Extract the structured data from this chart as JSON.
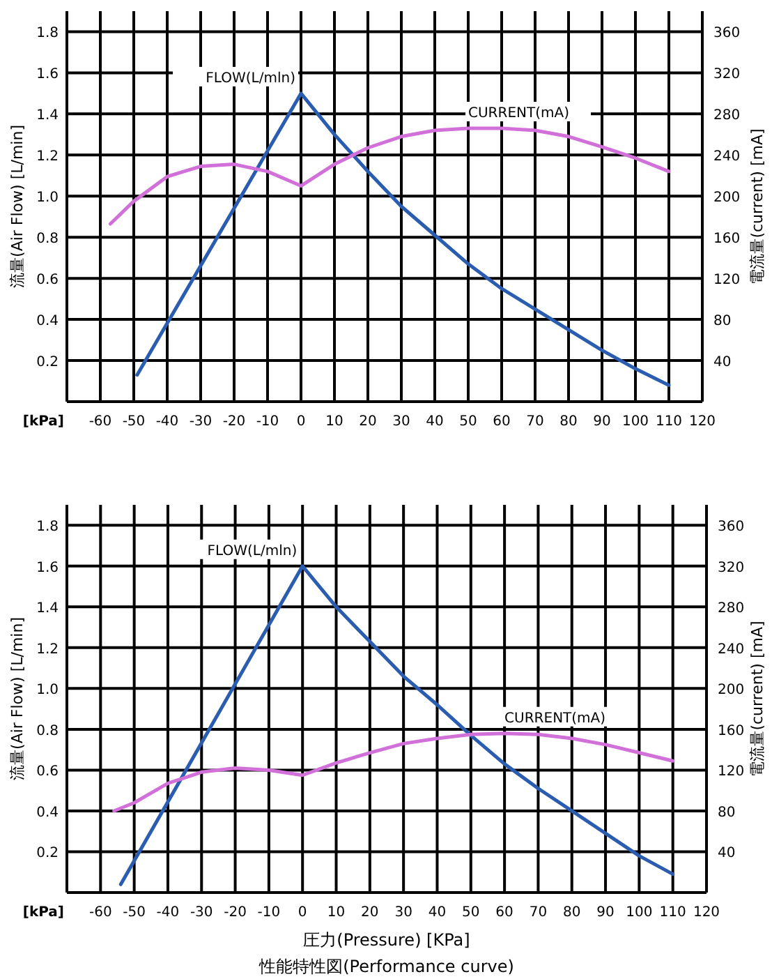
{
  "chart_data": [
    {
      "type": "line",
      "ylabel": "流量(Air Flow) [L/min]",
      "y2label": "電流量(current) [mA]",
      "annotations": [
        "[kPa]"
      ],
      "xlim": [
        -70,
        120
      ],
      "xticks": [
        -60,
        -50,
        -40,
        -30,
        -20,
        -10,
        0,
        10,
        20,
        30,
        40,
        50,
        60,
        70,
        80,
        90,
        100,
        110,
        120
      ],
      "ylim": [
        0,
        1.9
      ],
      "yticks": [
        0.2,
        0.4,
        0.6,
        0.8,
        {
          "value": 1,
          "label": "1.0"
        },
        1.2,
        1.4,
        1.6,
        1.8
      ],
      "y2lim": [
        0,
        380
      ],
      "y2ticks": [
        40,
        80,
        120,
        160,
        200,
        240,
        280,
        320,
        360
      ],
      "grid": true,
      "series": [
        {
          "name": "FLOW(L/mln)",
          "color": "#2a5db0",
          "x": [
            -49,
            0,
            10,
            20,
            30,
            40,
            50,
            60,
            70,
            80,
            90,
            100,
            110
          ],
          "values": [
            0.13,
            1.5,
            1.3,
            1.12,
            0.95,
            0.81,
            0.67,
            0.55,
            0.45,
            0.35,
            0.25,
            0.16,
            0.08
          ]
        },
        {
          "name": "CURRENT(mA)",
          "color": "#d070d8",
          "axis": "y2",
          "x": [
            -57,
            -50,
            -40,
            -30,
            -20,
            -10,
            0,
            10,
            20,
            30,
            40,
            50,
            60,
            70,
            80,
            90,
            100,
            110
          ],
          "values": [
            173,
            195,
            219,
            229,
            231,
            224,
            210,
            231,
            247,
            258,
            264,
            266,
            266,
            264,
            258,
            248,
            237,
            224
          ]
        }
      ]
    },
    {
      "type": "line",
      "xlabel": "圧力(Pressure) [KPa]",
      "ylabel": "流量(Air Flow) [L/min]",
      "y2label": "電流量(current) [mA]",
      "annotations": [
        "[kPa]",
        "性能特性図(Performance curve)"
      ],
      "xlim": [
        -70,
        120
      ],
      "xticks": [
        -60,
        -50,
        -40,
        -30,
        -20,
        -10,
        0,
        10,
        20,
        30,
        40,
        50,
        60,
        70,
        80,
        90,
        100,
        110,
        120
      ],
      "ylim": [
        0,
        1.9
      ],
      "yticks": [
        0.2,
        0.4,
        0.6,
        0.8,
        {
          "value": 1,
          "label": "1.0"
        },
        1.2,
        1.4,
        1.6,
        1.8
      ],
      "y2lim": [
        0,
        380
      ],
      "y2ticks": [
        40,
        80,
        120,
        160,
        200,
        240,
        280,
        320,
        360
      ],
      "grid": true,
      "series": [
        {
          "name": "FLOW(L/mln)",
          "color": "#2a5db0",
          "x": [
            -54,
            0,
            10,
            20,
            30,
            40,
            50,
            60,
            70,
            80,
            90,
            100,
            110
          ],
          "values": [
            0.04,
            1.6,
            1.4,
            1.23,
            1.06,
            0.92,
            0.77,
            0.63,
            0.51,
            0.4,
            0.29,
            0.18,
            0.09
          ]
        },
        {
          "name": "CURRENT(mA)",
          "color": "#d070d8",
          "axis": "y2",
          "x": [
            -56,
            -50,
            -40,
            -30,
            -20,
            -10,
            0,
            10,
            20,
            30,
            40,
            50,
            60,
            70,
            80,
            90,
            100,
            110
          ],
          "values": [
            80,
            88,
            107,
            118,
            122,
            120,
            115,
            127,
            137,
            146,
            151,
            155,
            156,
            155,
            151,
            145,
            137,
            129
          ]
        }
      ]
    }
  ]
}
